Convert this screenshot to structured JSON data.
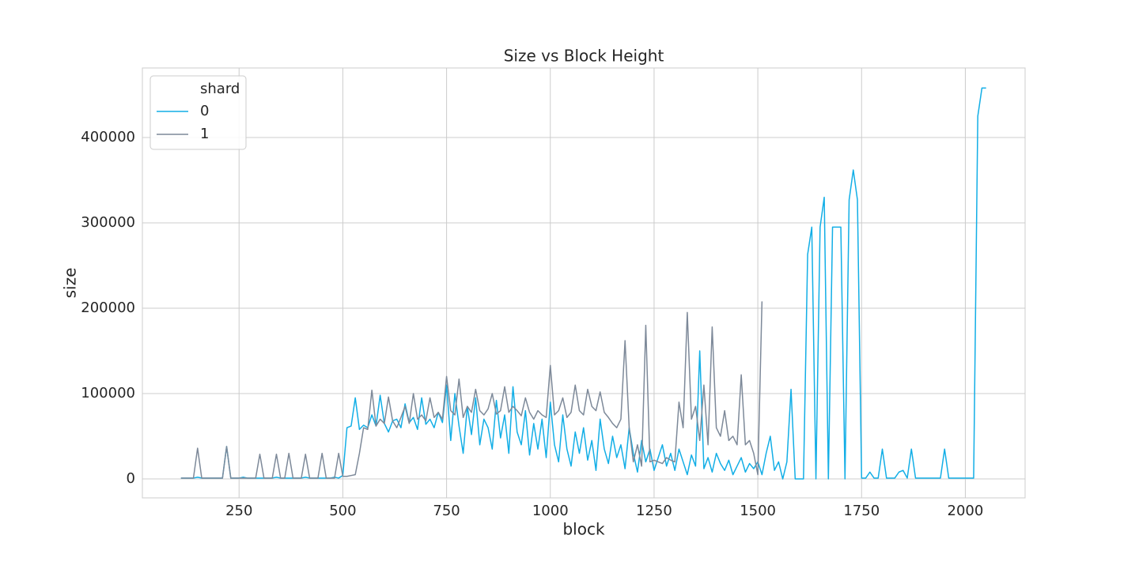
{
  "chart_data": {
    "type": "line",
    "title": "Size vs Block Height",
    "x_label": "block",
    "y_label": "size",
    "legend_title": "shard",
    "legend_position": "upper left",
    "grid": true,
    "xlim": [
      17,
      2144
    ],
    "xticks": [
      250,
      500,
      750,
      1000,
      1250,
      1500,
      1750,
      2000
    ],
    "ylim": [
      -22200,
      481500
    ],
    "yticks": [
      0,
      100000,
      200000,
      300000,
      400000
    ],
    "x": [
      110,
      120,
      130,
      140,
      150,
      160,
      170,
      180,
      190,
      200,
      210,
      220,
      230,
      240,
      250,
      260,
      270,
      280,
      290,
      300,
      310,
      320,
      330,
      340,
      350,
      360,
      370,
      380,
      390,
      400,
      410,
      420,
      430,
      440,
      450,
      460,
      470,
      480,
      490,
      500,
      510,
      520,
      530,
      540,
      550,
      560,
      570,
      580,
      590,
      600,
      610,
      620,
      630,
      640,
      650,
      660,
      670,
      680,
      690,
      700,
      710,
      720,
      730,
      740,
      750,
      760,
      770,
      780,
      790,
      800,
      810,
      820,
      830,
      840,
      850,
      860,
      870,
      880,
      890,
      900,
      910,
      920,
      930,
      940,
      950,
      960,
      970,
      980,
      990,
      1000,
      1010,
      1020,
      1030,
      1040,
      1050,
      1060,
      1070,
      1080,
      1090,
      1100,
      1110,
      1120,
      1130,
      1140,
      1150,
      1160,
      1170,
      1180,
      1190,
      1200,
      1210,
      1220,
      1230,
      1240,
      1250,
      1260,
      1270,
      1280,
      1290,
      1300,
      1310,
      1320,
      1330,
      1340,
      1350,
      1360,
      1370,
      1380,
      1390,
      1400,
      1410,
      1420,
      1430,
      1440,
      1450,
      1460,
      1470,
      1480,
      1490,
      1500,
      1510,
      1520,
      1530,
      1540,
      1550,
      1560,
      1570,
      1580,
      1590,
      1600,
      1610,
      1620,
      1630,
      1640,
      1650,
      1660,
      1670,
      1680,
      1690,
      1700,
      1710,
      1720,
      1730,
      1740,
      1750,
      1760,
      1770,
      1780,
      1790,
      1800,
      1810,
      1820,
      1830,
      1840,
      1850,
      1860,
      1870,
      1880,
      1890,
      1900,
      1910,
      1920,
      1930,
      1940,
      1950,
      1960,
      1970,
      1980,
      1990,
      2000,
      2010,
      2020,
      2030,
      2040,
      2050
    ],
    "series": [
      {
        "name": "0",
        "color": "#12aee6",
        "values": [
          1000,
          1000,
          1000,
          1000,
          2000,
          1000,
          1000,
          1000,
          1000,
          1000,
          1000,
          38000,
          1000,
          1000,
          1000,
          2000,
          1000,
          1000,
          1000,
          1000,
          1000,
          1000,
          1000,
          2000,
          1000,
          1000,
          1000,
          1000,
          1000,
          1000,
          2000,
          1000,
          1000,
          1000,
          1000,
          1000,
          1000,
          2000,
          1000,
          4000,
          60000,
          62000,
          95000,
          58000,
          63000,
          60000,
          75000,
          62000,
          98000,
          65000,
          55000,
          68000,
          70000,
          60000,
          88000,
          66000,
          72000,
          58000,
          95000,
          64000,
          70000,
          60000,
          78000,
          66000,
          110000,
          45000,
          100000,
          62000,
          30000,
          85000,
          52000,
          95000,
          40000,
          70000,
          60000,
          35000,
          92000,
          48000,
          75000,
          30000,
          108000,
          55000,
          40000,
          80000,
          28000,
          65000,
          35000,
          70000,
          25000,
          90000,
          40000,
          20000,
          75000,
          35000,
          15000,
          55000,
          30000,
          60000,
          22000,
          45000,
          10000,
          70000,
          35000,
          18000,
          50000,
          25000,
          40000,
          12000,
          60000,
          30000,
          8000,
          45000,
          20000,
          35000,
          10000,
          25000,
          40000,
          15000,
          30000,
          10000,
          35000,
          20000,
          5000,
          28000,
          15000,
          150000,
          12000,
          25000,
          8000,
          30000,
          18000,
          10000,
          22000,
          5000,
          15000,
          25000,
          8000,
          18000,
          12000,
          20000,
          5000,
          30000,
          50000,
          10000,
          20000,
          0,
          20000,
          105000,
          0,
          0,
          0,
          263000,
          295000,
          0,
          295000,
          330000,
          0,
          295000,
          295000,
          295000,
          0,
          327000,
          362000,
          327000,
          1000,
          1000,
          8000,
          1000,
          1000,
          35000,
          1000,
          1000,
          1000,
          8000,
          10000,
          1000,
          35000,
          1000,
          1000,
          1000,
          1000,
          1000,
          1000,
          1000,
          35000,
          1000,
          1000,
          1000,
          1000,
          1000,
          1000,
          1000,
          425000,
          458000,
          458000
        ]
      },
      {
        "name": "1",
        "color": "#7d8999",
        "values": [
          1000,
          1000,
          1000,
          1000,
          36000,
          1000,
          1000,
          1000,
          1000,
          1000,
          1000,
          38000,
          1000,
          1000,
          1000,
          1000,
          1000,
          1000,
          1000,
          29000,
          1000,
          1000,
          1000,
          29000,
          1000,
          1000,
          30000,
          1000,
          1000,
          1000,
          29000,
          1000,
          1000,
          1000,
          30000,
          1000,
          1000,
          1000,
          30000,
          3000,
          3000,
          4000,
          5000,
          30000,
          60000,
          58000,
          104000,
          62000,
          70000,
          65000,
          96000,
          68000,
          60000,
          72000,
          85000,
          65000,
          100000,
          70000,
          75000,
          68000,
          95000,
          72000,
          78000,
          70000,
          120000,
          80000,
          75000,
          117000,
          72000,
          85000,
          78000,
          105000,
          80000,
          75000,
          82000,
          100000,
          76000,
          80000,
          108000,
          78000,
          85000,
          80000,
          74000,
          95000,
          78000,
          70000,
          80000,
          75000,
          72000,
          133000,
          75000,
          80000,
          95000,
          72000,
          78000,
          110000,
          80000,
          75000,
          105000,
          85000,
          80000,
          102000,
          78000,
          72000,
          65000,
          60000,
          70000,
          162000,
          60000,
          20000,
          40000,
          15000,
          180000,
          20000,
          22000,
          20000,
          18000,
          25000,
          22000,
          20000,
          90000,
          60000,
          195000,
          70000,
          85000,
          45000,
          110000,
          40000,
          178000,
          60000,
          50000,
          80000,
          45000,
          50000,
          40000,
          122000,
          40000,
          45000,
          30000,
          5000,
          208000,
          null,
          null,
          null,
          null,
          null,
          null,
          null,
          null,
          null,
          null,
          null,
          null,
          null,
          null,
          null,
          null,
          null,
          null,
          null,
          null,
          null,
          null,
          null,
          null,
          null,
          null,
          null,
          null,
          null,
          null,
          null,
          null,
          null,
          null,
          null,
          null,
          null,
          null,
          null,
          null,
          null,
          null,
          null,
          null,
          null,
          null,
          null,
          null,
          null,
          null,
          null,
          null,
          null,
          null
        ]
      }
    ]
  }
}
